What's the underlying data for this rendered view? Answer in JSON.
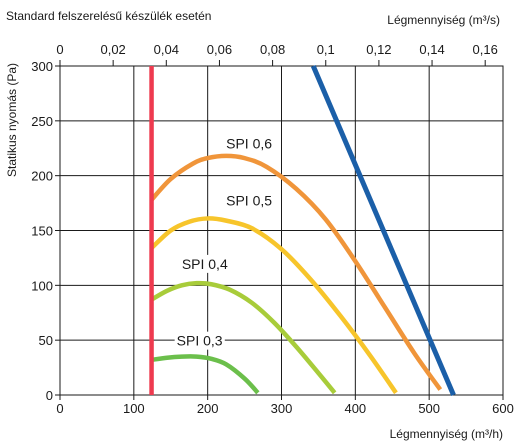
{
  "chart_data": {
    "type": "line",
    "title": "Standard felszerelésű készülék esetén",
    "xlabel": "Légmennyiség (m³/h)",
    "x2label": "Légmennyiség (m³/s)",
    "ylabel": "Statikus nyomás (Pa)",
    "xlim": [
      0,
      600
    ],
    "x2lim": [
      0,
      0.1667
    ],
    "ylim": [
      0,
      300
    ],
    "xticks": [
      0,
      100,
      200,
      300,
      400,
      500,
      600
    ],
    "x2ticks": [
      0,
      0.02,
      0.04,
      0.06,
      0.08,
      0.1,
      0.12,
      0.14,
      0.16
    ],
    "x2tick_labels": [
      "0",
      "0,02",
      "0,04",
      "0,06",
      "0,08",
      "0,1",
      "0,12",
      "0,14",
      "0,16"
    ],
    "yticks": [
      0,
      50,
      100,
      150,
      200,
      250,
      300
    ],
    "grid": true,
    "legend": "none",
    "colors": {
      "spi06": "#f0953a",
      "spi05": "#f7c52b",
      "spi04": "#a8cc3a",
      "spi03": "#6bbf4b",
      "limit": "#ee3a4f",
      "fan_curve": "#1b5fa8"
    },
    "series": [
      {
        "name": "SPI 0,6",
        "color_key": "spi06",
        "x": [
          124,
          150,
          180,
          200,
          225,
          250,
          280,
          320,
          360,
          400,
          440,
          480,
          515
        ],
        "y": [
          178,
          197,
          211,
          216,
          218,
          216,
          208,
          188,
          160,
          122,
          80,
          38,
          5
        ],
        "label_at": [
          225,
          225
        ]
      },
      {
        "name": "SPI 0,5",
        "color_key": "spi05",
        "x": [
          124,
          150,
          175,
          200,
          225,
          260,
          300,
          340,
          380,
          420,
          455
        ],
        "y": [
          134,
          150,
          158,
          161,
          159,
          152,
          133,
          105,
          72,
          36,
          2
        ],
        "label_at": [
          225,
          173
        ]
      },
      {
        "name": "SPI 0,4",
        "color_key": "spi04",
        "x": [
          124,
          145,
          165,
          185,
          205,
          230,
          260,
          290,
          320,
          350,
          372
        ],
        "y": [
          87,
          95,
          100,
          102,
          101,
          96,
          84,
          66,
          44,
          20,
          2
        ],
        "label_at": [
          165,
          115
        ]
      },
      {
        "name": "SPI 0,3",
        "color_key": "spi03",
        "x": [
          124,
          145,
          165,
          185,
          205,
          225,
          250,
          268
        ],
        "y": [
          32,
          34,
          35,
          35,
          33,
          28,
          15,
          2
        ],
        "label_at": [
          158,
          45
        ]
      },
      {
        "name": "",
        "color_key": "limit",
        "x": [
          124,
          124
        ],
        "y": [
          0,
          300
        ]
      },
      {
        "name": "",
        "color_key": "fan_curve",
        "x": [
          343,
          533
        ],
        "y": [
          300,
          0
        ]
      }
    ]
  }
}
